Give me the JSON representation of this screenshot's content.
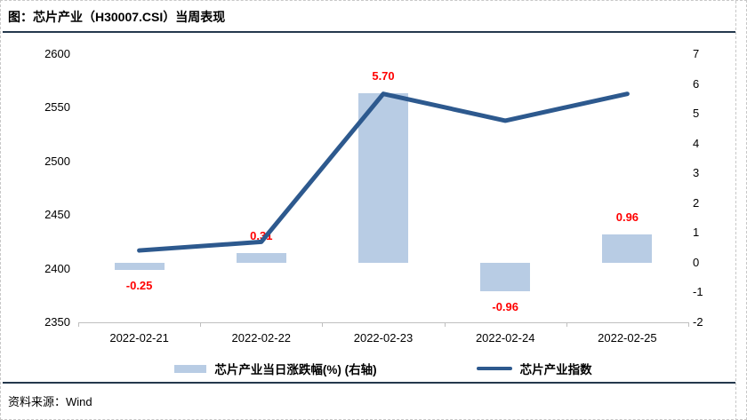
{
  "frame": {
    "title": "图：芯片产业（H30007.CSI）当周表现",
    "source": "资料来源：Wind"
  },
  "chart_data": {
    "type": "combo-bar-line",
    "title": "图：芯片产业（H30007.CSI）当周表现",
    "categories": [
      "2022-02-21",
      "2022-02-22",
      "2022-02-23",
      "2022-02-24",
      "2022-02-25"
    ],
    "series": [
      {
        "name": "芯片产业当日涨跌幅(%) (右轴)",
        "chart_type": "bar",
        "axis": "right",
        "values": [
          -0.25,
          0.31,
          5.7,
          -0.96,
          0.96
        ],
        "value_labels": [
          "-0.25",
          "0.31",
          "5.70",
          "-0.96",
          "0.96"
        ],
        "color": "#b8cce4",
        "label_color": "#ff0000"
      },
      {
        "name": "芯片产业指数",
        "chart_type": "line",
        "axis": "left",
        "values": [
          2417,
          2425,
          2563,
          2538,
          2563
        ],
        "color": "#2d598e"
      }
    ],
    "left_axis": {
      "min": 2350,
      "max": 2600,
      "step": 50,
      "ticks": [
        "2600",
        "2550",
        "2500",
        "2450",
        "2400",
        "2350"
      ]
    },
    "right_axis": {
      "min": -2,
      "max": 7,
      "step": 1,
      "ticks": [
        "7",
        "6",
        "5",
        "4",
        "3",
        "2",
        "1",
        "0",
        "-1",
        "-2"
      ]
    },
    "grid": false,
    "legend_position": "bottom"
  },
  "colors": {
    "separator": "#24384d",
    "axis_line": "#bfbfbf",
    "bar_fill": "#b8cce4",
    "line_stroke": "#2d598e",
    "value_label": "#ff0000"
  }
}
